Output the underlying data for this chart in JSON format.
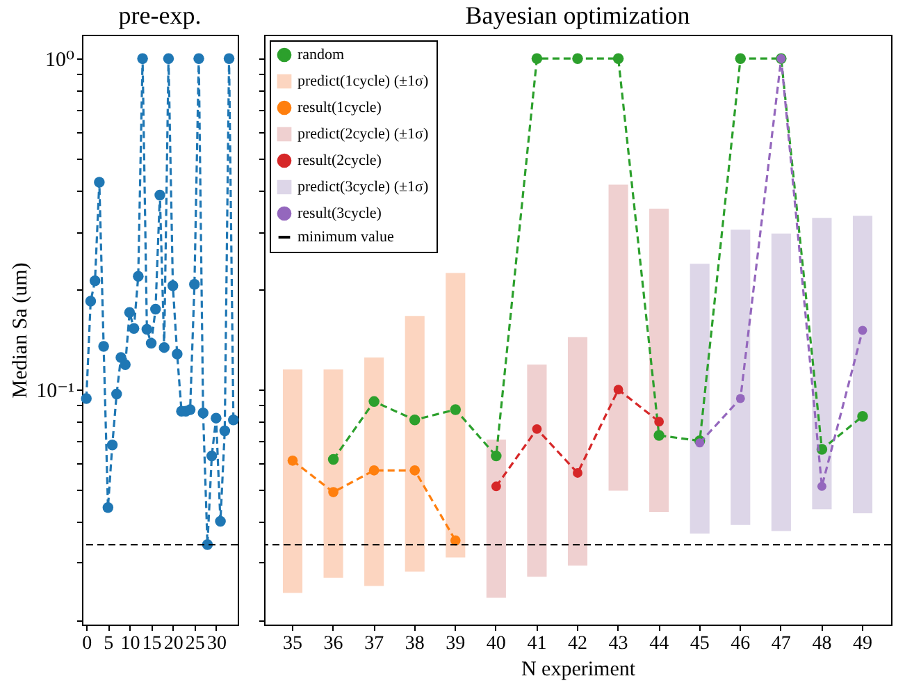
{
  "chart_data": [
    {
      "type": "line",
      "title": "pre-exp.",
      "ylabel": "Median Sa (um)",
      "x": [
        0,
        1,
        2,
        3,
        4,
        5,
        6,
        7,
        8,
        9,
        10,
        11,
        12,
        13,
        14,
        15,
        16,
        17,
        18,
        19,
        20,
        21,
        22,
        23,
        24,
        25,
        26,
        27,
        28,
        29,
        30,
        31,
        32,
        33,
        34
      ],
      "series": [
        {
          "color": "#1f77b4",
          "values": [
            0.094,
            0.185,
            0.213,
            0.423,
            0.135,
            0.044,
            0.068,
            0.097,
            0.125,
            0.119,
            0.171,
            0.153,
            0.22,
            1.0,
            0.152,
            0.138,
            0.175,
            0.387,
            0.134,
            1.0,
            0.206,
            0.128,
            0.086,
            0.086,
            0.087,
            0.208,
            1.0,
            0.085,
            0.034,
            0.063,
            0.082,
            0.04,
            0.075,
            1.0,
            0.081
          ]
        }
      ],
      "xlim": [
        -1,
        35
      ],
      "xticks": [
        0,
        5,
        10,
        15,
        20,
        25,
        30
      ],
      "ylim": [
        0.0195,
        1.18
      ],
      "yticks": [
        {
          "value": 0.02,
          "label": null
        },
        {
          "value": 0.03,
          "label": null
        },
        {
          "value": 0.04,
          "label": null
        },
        {
          "value": 0.05,
          "label": null
        },
        {
          "value": 0.06,
          "label": null
        },
        {
          "value": 0.07,
          "label": null
        },
        {
          "value": 0.08,
          "label": null
        },
        {
          "value": 0.09,
          "label": null
        },
        {
          "value": 0.1,
          "label": "10⁻¹"
        },
        {
          "value": 0.2,
          "label": null
        },
        {
          "value": 0.3,
          "label": null
        },
        {
          "value": 0.4,
          "label": null
        },
        {
          "value": 0.5,
          "label": null
        },
        {
          "value": 0.6,
          "label": null
        },
        {
          "value": 0.7,
          "label": null
        },
        {
          "value": 0.8,
          "label": null
        },
        {
          "value": 0.9,
          "label": null
        },
        {
          "value": 1,
          "label": "10⁰"
        }
      ],
      "log": "y",
      "marker": "circle",
      "line_style": "dashed",
      "ref_lines": [
        {
          "axis": "y",
          "value": 0.034,
          "color": "#000000",
          "line_style": "dashed"
        }
      ]
    },
    {
      "type": "line",
      "title": "Bayesian optimization",
      "xlabel": "N experiment",
      "categories": [
        "35",
        "36",
        "37",
        "38",
        "39",
        "40",
        "41",
        "42",
        "43",
        "44",
        "45",
        "46",
        "47",
        "48",
        "49"
      ],
      "series": [
        {
          "name": "random",
          "color": "#2ca02c",
          "values": [
            null,
            0.0615,
            0.092,
            0.081,
            0.087,
            0.063,
            1.0,
            1.0,
            1.0,
            0.0727,
            0.07,
            1.0,
            1.0,
            0.066,
            0.083
          ]
        },
        {
          "name": "predict(1cycle) (±1σ)",
          "type": "bar",
          "color": "#fcd5c0",
          "base": [
            0.0243,
            0.027,
            0.0255,
            0.0282,
            0.0311,
            null,
            null,
            null,
            null,
            null,
            null,
            null,
            null,
            null,
            null
          ],
          "values": [
            0.0907,
            0.088,
            0.0995,
            0.1388,
            0.1939,
            null,
            null,
            null,
            null,
            null,
            null,
            null,
            null,
            null,
            null
          ]
        },
        {
          "name": "result(1cycle)",
          "color": "#ff7f0e",
          "values": [
            0.061,
            0.049,
            0.057,
            0.057,
            0.035,
            null,
            null,
            null,
            null,
            null,
            null,
            null,
            null,
            null,
            null
          ]
        },
        {
          "name": "predict(2cycle) (±1σ)",
          "type": "bar",
          "color": "#efd0d0",
          "base": [
            null,
            null,
            null,
            null,
            null,
            0.0235,
            0.0272,
            0.0294,
            0.0495,
            0.0427,
            null,
            null,
            null,
            null,
            null
          ],
          "values": [
            null,
            null,
            null,
            null,
            null,
            0.0471,
            0.0918,
            0.1146,
            0.3665,
            0.3093,
            null,
            null,
            null,
            null,
            null
          ]
        },
        {
          "name": "result(2cycle)",
          "color": "#d62728",
          "values": [
            null,
            null,
            null,
            null,
            null,
            0.051,
            0.076,
            0.056,
            0.1,
            0.08,
            null,
            null,
            null,
            null,
            null
          ]
        },
        {
          "name": "predict(3cycle) (±1σ)",
          "type": "bar",
          "color": "#ddd6e8",
          "base": [
            null,
            null,
            null,
            null,
            null,
            null,
            null,
            null,
            null,
            null,
            0.0367,
            0.039,
            0.0374,
            0.0435,
            0.0423
          ],
          "values": [
            null,
            null,
            null,
            null,
            null,
            null,
            null,
            null,
            null,
            null,
            0.2033,
            0.265,
            0.2586,
            0.2865,
            0.2927
          ]
        },
        {
          "name": "result(3cycle)",
          "color": "#9467bd",
          "values": [
            null,
            null,
            null,
            null,
            null,
            null,
            null,
            null,
            null,
            null,
            0.069,
            0.094,
            1.0,
            0.051,
            0.151
          ]
        }
      ],
      "ylim": [
        0.0195,
        1.18
      ],
      "yticks": [
        {
          "value": 0.02,
          "label": null
        },
        {
          "value": 0.03,
          "label": null
        },
        {
          "value": 0.04,
          "label": null
        },
        {
          "value": 0.05,
          "label": null
        },
        {
          "value": 0.06,
          "label": null
        },
        {
          "value": 0.07,
          "label": null
        },
        {
          "value": 0.08,
          "label": null
        },
        {
          "value": 0.09,
          "label": null
        },
        {
          "value": 0.1,
          "label": null
        },
        {
          "value": 0.2,
          "label": null
        },
        {
          "value": 0.3,
          "label": null
        },
        {
          "value": 0.4,
          "label": null
        },
        {
          "value": 0.5,
          "label": null
        },
        {
          "value": 0.6,
          "label": null
        },
        {
          "value": 0.7,
          "label": null
        },
        {
          "value": 0.8,
          "label": null
        },
        {
          "value": 0.9,
          "label": null
        },
        {
          "value": 1,
          "label": null
        }
      ],
      "log": "y",
      "tick_labels": "x",
      "legend": "top left",
      "marker": "circle",
      "line_style": "dashed",
      "ref_lines": [
        {
          "axis": "y",
          "value": 0.034,
          "label": "minimum value",
          "color": "#000000",
          "line_style": "dashed"
        }
      ]
    }
  ]
}
